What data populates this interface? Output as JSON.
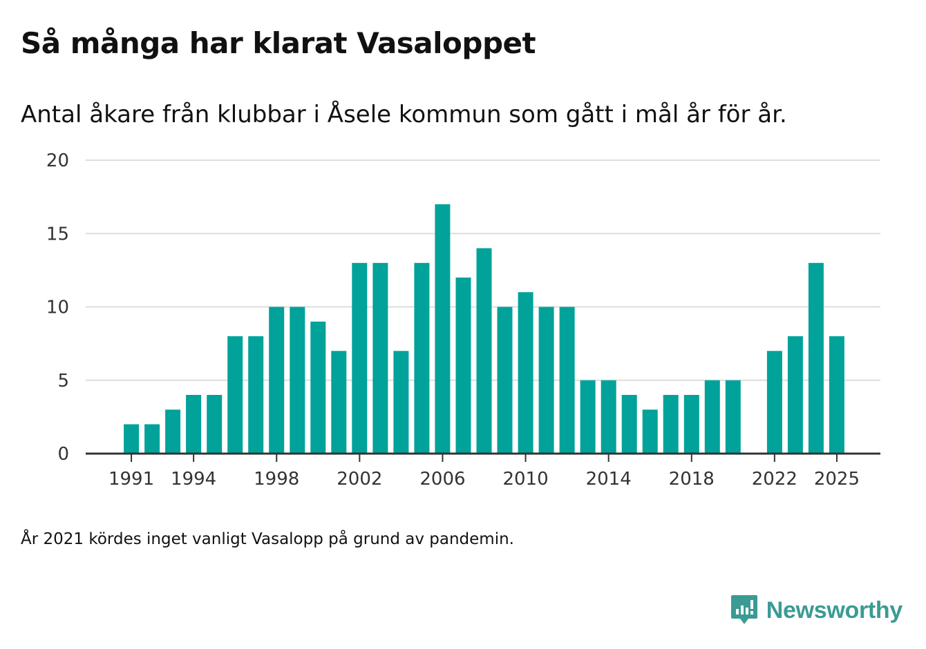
{
  "title": "Så många har klarat Vasaloppet",
  "subtitle": "Antal åkare från klubbar i Åsele kommun som gått i mål år för år.",
  "note": "År 2021 kördes inget vanligt Vasalopp på grund av pandemin.",
  "brand": {
    "name": "Newsworthy",
    "icon": "newsworthy-logo-icon",
    "color": "#3a9b94"
  },
  "colors": {
    "bar": "#00a29a",
    "grid": "#dddddd",
    "axis": "#333333",
    "tick_text": "#333333"
  },
  "chart_data": {
    "type": "bar",
    "title": "Så många har klarat Vasaloppet",
    "xlabel": "",
    "ylabel": "",
    "x": [
      1991,
      1992,
      1993,
      1994,
      1995,
      1996,
      1997,
      1998,
      1999,
      2000,
      2001,
      2002,
      2003,
      2004,
      2005,
      2006,
      2007,
      2008,
      2009,
      2010,
      2011,
      2012,
      2013,
      2014,
      2015,
      2016,
      2017,
      2018,
      2019,
      2020,
      2021,
      2022,
      2023,
      2024,
      2025
    ],
    "values": [
      2,
      2,
      3,
      4,
      4,
      8,
      8,
      10,
      10,
      9,
      7,
      13,
      13,
      7,
      13,
      17,
      12,
      14,
      10,
      11,
      10,
      10,
      5,
      5,
      4,
      3,
      4,
      4,
      5,
      5,
      null,
      7,
      8,
      13,
      8
    ],
    "xticks": [
      "1991",
      "1994",
      "1998",
      "2002",
      "2006",
      "2010",
      "2014",
      "2018",
      "2022",
      "2025"
    ],
    "yticks": [
      "0",
      "5",
      "10",
      "15",
      "20"
    ],
    "ylim": [
      0,
      20
    ],
    "xlim": [
      1988.8,
      2027.1
    ],
    "grid": true
  }
}
